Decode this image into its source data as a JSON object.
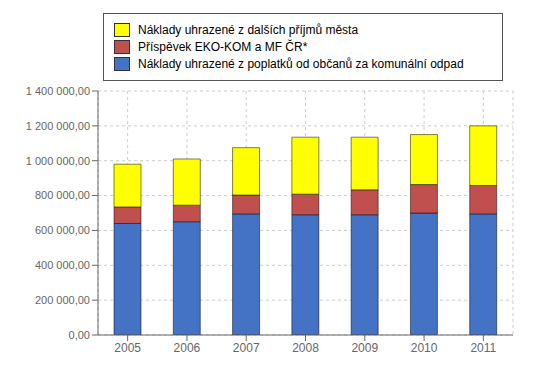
{
  "chart_data": {
    "type": "bar",
    "stacked": true,
    "categories": [
      "2005",
      "2006",
      "2007",
      "2008",
      "2009",
      "2010",
      "2011"
    ],
    "series": [
      {
        "name": "Náklady uhrazené z poplatků od občanů za komunální odpad",
        "color": "#4472C4",
        "values": [
          640000,
          650000,
          695000,
          690000,
          690000,
          700000,
          695000
        ]
      },
      {
        "name": "Příspěvek EKO-KOM a MF ČR*",
        "color": "#C0504D",
        "values": [
          95000,
          95000,
          108000,
          118000,
          143000,
          163000,
          163000
        ]
      },
      {
        "name": "Náklady uhrazené z dalších příjmů města",
        "color": "#FFFF00",
        "values": [
          245000,
          265000,
          272000,
          327000,
          302000,
          287000,
          342000
        ]
      }
    ],
    "ylim": [
      0,
      1400000
    ],
    "yticks": [
      {
        "value": 0,
        "label": "0,00"
      },
      {
        "value": 200000,
        "label": "200 000,00"
      },
      {
        "value": 400000,
        "label": "400 000,00"
      },
      {
        "value": 600000,
        "label": "600 000,00"
      },
      {
        "value": 800000,
        "label": "800 000,00"
      },
      {
        "value": 1000000,
        "label": "1 000 000,00"
      },
      {
        "value": 1200000,
        "label": "1 200 000,00"
      },
      {
        "value": 1400000,
        "label": "1 400 000,00"
      }
    ],
    "grid": true,
    "legend": "top"
  }
}
